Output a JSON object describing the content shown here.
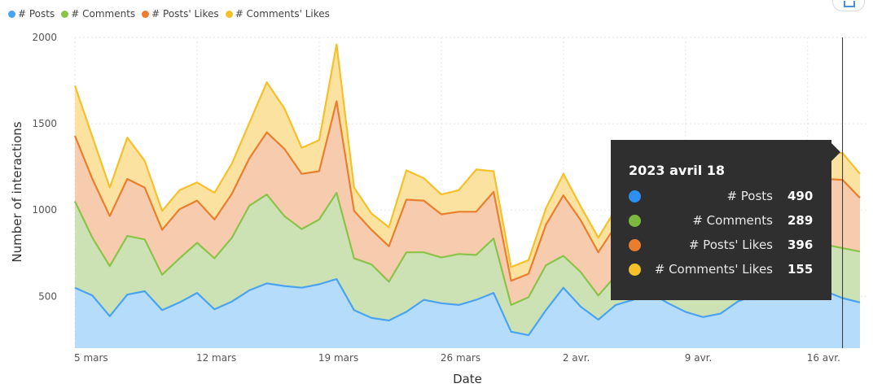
{
  "chart_data": {
    "type": "area",
    "stacked": true,
    "xlabel": "Date",
    "ylabel": "Number of interactions",
    "ylim": [
      200,
      2000
    ],
    "yticks": [
      500,
      1000,
      1500,
      2000
    ],
    "grid": true,
    "legend_position": "top-left",
    "x_tick_labels": [
      "5 mars",
      "12 mars",
      "19 mars",
      "26 mars",
      "2 avr.",
      "9 avr.",
      "16 avr."
    ],
    "x_tick_dates": [
      "2023-03-05",
      "2023-03-12",
      "2023-03-19",
      "2023-03-26",
      "2023-04-02",
      "2023-04-09",
      "2023-04-16"
    ],
    "x": [
      "2023-03-05",
      "2023-03-06",
      "2023-03-07",
      "2023-03-08",
      "2023-03-09",
      "2023-03-10",
      "2023-03-11",
      "2023-03-12",
      "2023-03-13",
      "2023-03-14",
      "2023-03-15",
      "2023-03-16",
      "2023-03-17",
      "2023-03-18",
      "2023-03-19",
      "2023-03-20",
      "2023-03-21",
      "2023-03-22",
      "2023-03-23",
      "2023-03-24",
      "2023-03-25",
      "2023-03-26",
      "2023-03-27",
      "2023-03-28",
      "2023-03-29",
      "2023-03-30",
      "2023-03-31",
      "2023-04-01",
      "2023-04-02",
      "2023-04-03",
      "2023-04-04",
      "2023-04-05",
      "2023-04-06",
      "2023-04-07",
      "2023-04-08",
      "2023-04-09",
      "2023-04-10",
      "2023-04-11",
      "2023-04-12",
      "2023-04-13",
      "2023-04-14",
      "2023-04-15",
      "2023-04-16",
      "2023-04-17",
      "2023-04-18",
      "2023-04-19"
    ],
    "series": [
      {
        "name": "# Posts",
        "color": "#4aa3f0",
        "values": [
          550,
          505,
          385,
          510,
          530,
          420,
          465,
          520,
          425,
          470,
          535,
          575,
          560,
          550,
          570,
          600,
          420,
          375,
          360,
          410,
          480,
          460,
          450,
          480,
          520,
          295,
          275,
          420,
          550,
          440,
          365,
          450,
          480,
          520,
          460,
          410,
          380,
          400,
          470,
          510,
          540,
          530,
          510,
          530,
          490,
          465
        ]
      },
      {
        "name": "# Comments",
        "color": "#8bc34a",
        "values": [
          500,
          335,
          290,
          340,
          300,
          205,
          255,
          290,
          295,
          370,
          490,
          515,
          405,
          340,
          375,
          500,
          300,
          310,
          225,
          345,
          275,
          265,
          295,
          260,
          315,
          155,
          220,
          260,
          185,
          200,
          140,
          170,
          230,
          260,
          250,
          135,
          125,
          180,
          240,
          300,
          310,
          290,
          280,
          270,
          289,
          295
        ]
      },
      {
        "name": "# Posts' Likes",
        "color": "#e97f2e",
        "values": [
          380,
          340,
          290,
          330,
          300,
          260,
          285,
          245,
          225,
          255,
          275,
          360,
          390,
          320,
          280,
          530,
          275,
          200,
          205,
          305,
          300,
          250,
          245,
          250,
          270,
          140,
          135,
          235,
          350,
          300,
          250,
          290,
          320,
          330,
          300,
          280,
          260,
          290,
          330,
          360,
          380,
          390,
          400,
          380,
          396,
          310
        ]
      },
      {
        "name": "# Comments' Likes",
        "color": "#f5c02a",
        "values": [
          290,
          245,
          165,
          240,
          155,
          110,
          110,
          105,
          155,
          175,
          205,
          290,
          235,
          150,
          180,
          330,
          135,
          95,
          110,
          170,
          130,
          115,
          125,
          245,
          120,
          80,
          80,
          95,
          125,
          80,
          85,
          95,
          110,
          120,
          110,
          95,
          90,
          110,
          130,
          150,
          160,
          160,
          155,
          155,
          155,
          140
        ]
      }
    ],
    "hover": {
      "index": 44,
      "date": "2023-04-18"
    }
  },
  "tooltip": {
    "title": "2023 avril 18",
    "rows": [
      {
        "label": "# Posts",
        "value": "490",
        "color": "#2f8ff0"
      },
      {
        "label": "# Comments",
        "value": "289",
        "color": "#7cba3f"
      },
      {
        "label": "# Posts' Likes",
        "value": "396",
        "color": "#e97f2e"
      },
      {
        "label": "# Comments' Likes",
        "value": "155",
        "color": "#f5c02a"
      }
    ]
  }
}
